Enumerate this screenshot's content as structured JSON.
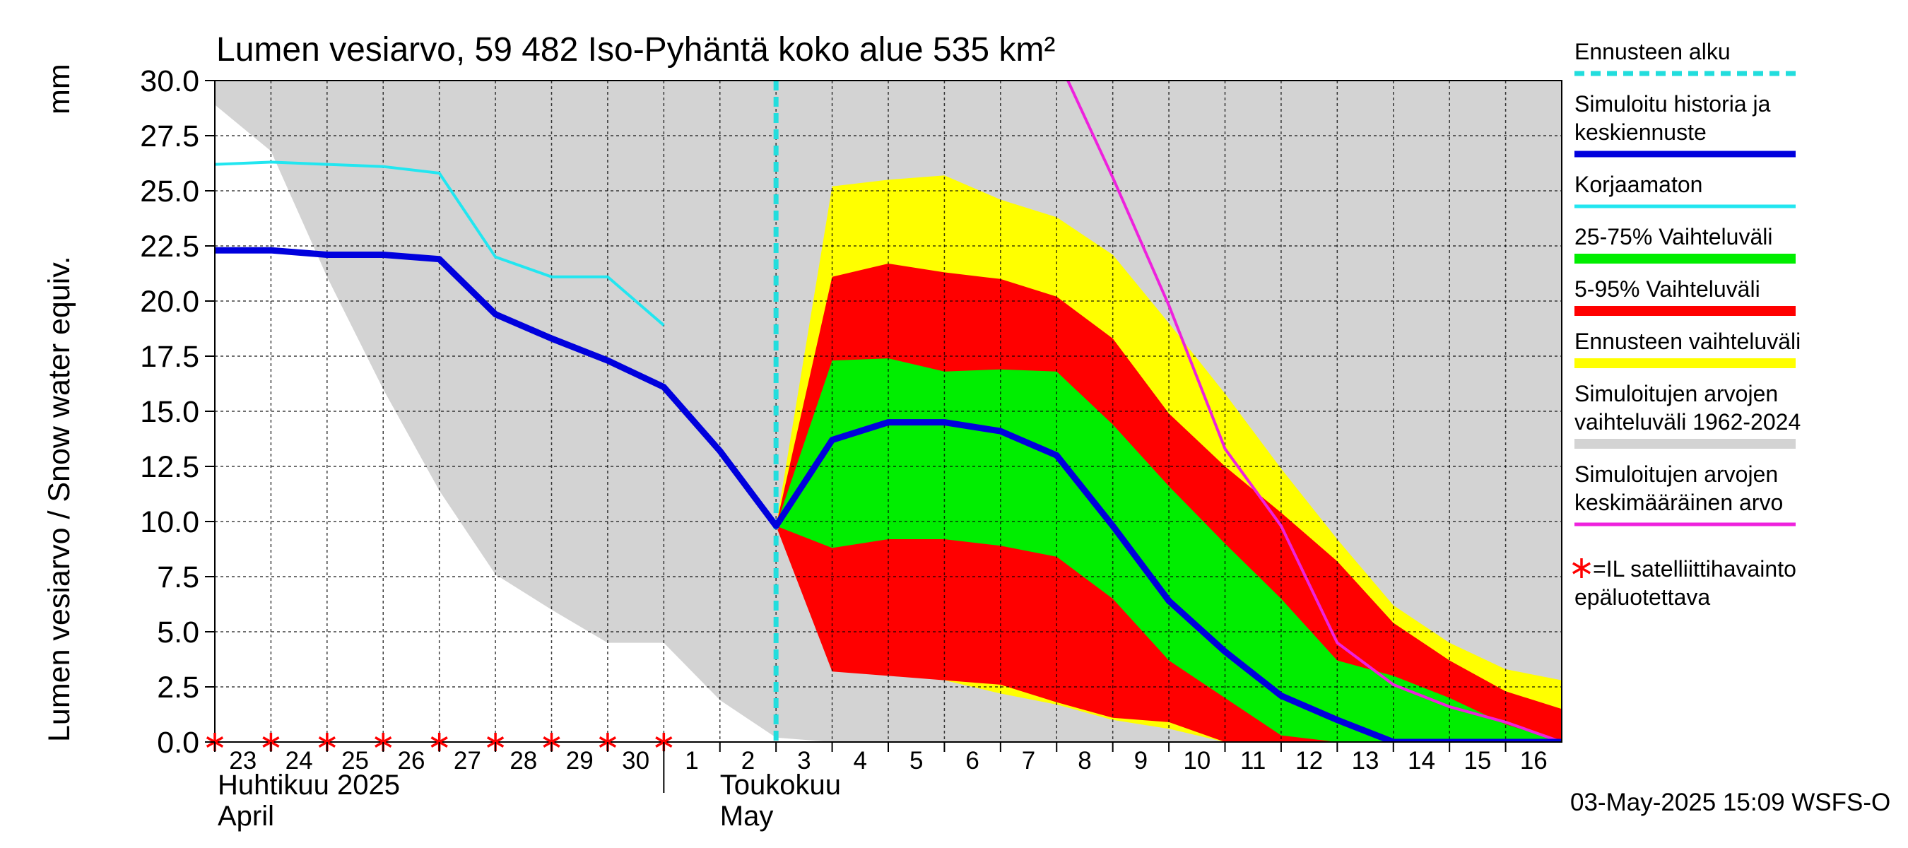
{
  "chart_data": {
    "type": "area",
    "title": "Lumen vesiarvo, 59 482 Iso-Pyhäntä koko alue 535 km²",
    "ylabel": "Lumen vesiarvo / Snow water equiv.",
    "yunit": "mm",
    "ylim": [
      0,
      30
    ],
    "yticks": [
      "0.0",
      "2.5",
      "5.0",
      "7.5",
      "10.0",
      "12.5",
      "15.0",
      "17.5",
      "20.0",
      "22.5",
      "25.0",
      "27.5",
      "30.0"
    ],
    "xlim": [
      "2025-04-23",
      "2025-05-17"
    ],
    "xtick_labels": [
      "23",
      "24",
      "25",
      "26",
      "27",
      "28",
      "29",
      "30",
      "1",
      "2",
      "3",
      "4",
      "5",
      "6",
      "7",
      "8",
      "9",
      "10",
      "11",
      "12",
      "13",
      "14",
      "15",
      "16"
    ],
    "month_labels": [
      {
        "fi": "Huhtikuu  2025",
        "en": "April"
      },
      {
        "fi": "Toukokuu",
        "en": "May"
      }
    ],
    "grid": true,
    "forecast_start": "2025-05-03",
    "footer": "03-May-2025 15:09 WSFS-O",
    "legend": [
      {
        "label": "Ennusteen alku",
        "color": "#22dddd",
        "style": "dashed"
      },
      {
        "label": "Simuloitu historia ja keskiennuste",
        "color": "#0000dd",
        "style": "thick"
      },
      {
        "label": "Korjaamaton",
        "color": "#22e6f0",
        "style": "line"
      },
      {
        "label": "25-75% Vaihteluväli",
        "color": "#00ee00",
        "style": "band"
      },
      {
        "label": "5-95% Vaihteluväli",
        "color": "#ff0000",
        "style": "band"
      },
      {
        "label": "Ennusteen vaihteluväli",
        "color": "#ffff00",
        "style": "band"
      },
      {
        "label": "Simuloitujen arvojen vaihteluväli 1962-2024",
        "color": "#d3d3d3",
        "style": "band"
      },
      {
        "label": "Simuloitujen arvojen keskimääräinen arvo",
        "color": "#ee22dd",
        "style": "line"
      },
      {
        "label": "=IL satelliittihavainto epäluotettava",
        "color": "#ff0000",
        "style": "star"
      }
    ],
    "series": {
      "hist_range": {
        "x": [
          0,
          1,
          2,
          3,
          4,
          5,
          6,
          7,
          8,
          9,
          10,
          11,
          12,
          13,
          14,
          15,
          16,
          17,
          18,
          19,
          20,
          21,
          22,
          23,
          24
        ],
        "upper": [
          30,
          30,
          30,
          30,
          30,
          30,
          30,
          30,
          30,
          30,
          30,
          30,
          30,
          30,
          30,
          30,
          30,
          30,
          30,
          30,
          30,
          30,
          30,
          30,
          30
        ],
        "lower": [
          28.9,
          26.8,
          21.1,
          16.0,
          11.4,
          7.6,
          6.0,
          4.5,
          4.5,
          1.9,
          0.2,
          0,
          0,
          0,
          0,
          0,
          0,
          0,
          0,
          0,
          0,
          0,
          0,
          0,
          0
        ]
      },
      "forecast_range": {
        "x": [
          10,
          11,
          12,
          13,
          14,
          15,
          16,
          17,
          18,
          19,
          20,
          21,
          22,
          23,
          24
        ],
        "upper": [
          9.8,
          25.2,
          25.5,
          25.7,
          24.6,
          23.8,
          22.1,
          19.0,
          15.8,
          12.4,
          9.2,
          6.2,
          4.5,
          3.3,
          2.8
        ],
        "lower": [
          9.8,
          3.3,
          3.1,
          2.8,
          2.2,
          1.7,
          1.0,
          0.6,
          0,
          0,
          0,
          0,
          0,
          0,
          0
        ]
      },
      "p5_95": {
        "x": [
          10,
          11,
          12,
          13,
          14,
          15,
          16,
          17,
          18,
          19,
          20,
          21,
          22,
          23,
          24
        ],
        "upper": [
          9.8,
          21.1,
          21.7,
          21.3,
          21.0,
          20.2,
          18.3,
          14.9,
          12.5,
          10.4,
          8.2,
          5.4,
          3.7,
          2.3,
          1.5
        ],
        "lower": [
          9.8,
          3.2,
          3.0,
          2.8,
          2.6,
          1.8,
          1.1,
          0.9,
          0,
          0,
          0,
          0,
          0,
          0,
          0
        ]
      },
      "p25_75": {
        "x": [
          10,
          11,
          12,
          13,
          14,
          15,
          16,
          17,
          18,
          19,
          20,
          21,
          22,
          23,
          24
        ],
        "upper": [
          9.8,
          17.3,
          17.4,
          16.8,
          16.9,
          16.8,
          14.4,
          11.6,
          9.0,
          6.5,
          3.7,
          3.0,
          2.0,
          0.8,
          0
        ],
        "lower": [
          9.8,
          8.8,
          9.2,
          9.2,
          8.9,
          8.4,
          6.5,
          3.7,
          2.0,
          0.3,
          0,
          0,
          0,
          0,
          0
        ]
      },
      "median": {
        "x": [
          0,
          1,
          2,
          3,
          4,
          5,
          6,
          7,
          8,
          9,
          10,
          11,
          12,
          13,
          14,
          15,
          16,
          17,
          18,
          19,
          20,
          21,
          22,
          23,
          24
        ],
        "y": [
          22.3,
          22.3,
          22.1,
          22.1,
          21.9,
          19.4,
          18.3,
          17.3,
          16.1,
          13.2,
          9.8,
          13.7,
          14.5,
          14.5,
          14.1,
          13.0,
          9.8,
          6.4,
          4.1,
          2.1,
          1.0,
          0,
          0,
          0,
          0
        ]
      },
      "uncorrected": {
        "x": [
          0,
          1,
          2,
          3,
          4,
          5,
          6,
          7,
          8
        ],
        "y": [
          26.2,
          26.3,
          26.2,
          26.1,
          25.8,
          22.0,
          21.1,
          21.1,
          18.9
        ]
      },
      "mean": {
        "x": [
          15.2,
          16,
          17,
          18,
          19,
          20,
          21,
          22,
          23,
          24
        ],
        "y": [
          30.0,
          25.6,
          19.8,
          13.3,
          9.8,
          4.5,
          2.6,
          1.6,
          0.9,
          0
        ]
      },
      "stars_x": [
        0,
        1,
        2,
        3,
        4,
        5,
        6,
        7,
        8
      ]
    }
  }
}
